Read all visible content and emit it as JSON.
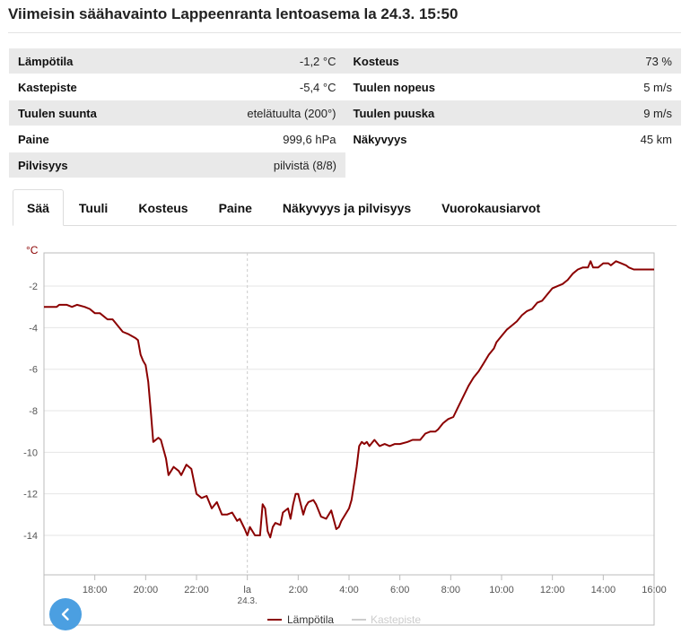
{
  "title": "Viimeisin säähavainto Lappeenranta lentoasema la 24.3. 15:50",
  "observations": [
    {
      "left": {
        "label": "Lämpötila",
        "value": "-1,2 °C"
      },
      "right": {
        "label": "Kosteus",
        "value": "73 %"
      }
    },
    {
      "left": {
        "label": "Kastepiste",
        "value": "-5,4 °C"
      },
      "right": {
        "label": "Tuulen nopeus",
        "value": "5 m/s"
      }
    },
    {
      "left": {
        "label": "Tuulen suunta",
        "value": "etelätuulta (200°)"
      },
      "right": {
        "label": "Tuulen puuska",
        "value": "9 m/s"
      }
    },
    {
      "left": {
        "label": "Paine",
        "value": "999,6 hPa"
      },
      "right": {
        "label": "Näkyvyys",
        "value": "45 km"
      }
    },
    {
      "left": {
        "label": "Pilvisyys",
        "value": "pilvistä (8/8)"
      },
      "right": null
    }
  ],
  "tabs": [
    {
      "label": "Sää",
      "active": true
    },
    {
      "label": "Tuuli",
      "active": false
    },
    {
      "label": "Kosteus",
      "active": false
    },
    {
      "label": "Paine",
      "active": false
    },
    {
      "label": "Näkyvyys ja pilvisyys",
      "active": false
    },
    {
      "label": "Vuorokausiarvot",
      "active": false
    }
  ],
  "colors": {
    "temperature": "#8b0000",
    "dewpoint": "#cccccc",
    "grid": "#e6e6e6",
    "back_button": "#4b9fe1"
  },
  "icons": {
    "back": "chevron-left-icon"
  },
  "chart_data": {
    "type": "line",
    "ylabel": "°C",
    "ylim": [
      -15.9,
      -0.4
    ],
    "yticks": [
      -14,
      -12,
      -10,
      -8,
      -6,
      -4,
      -2
    ],
    "xlim_hours": [
      16.0,
      40.0
    ],
    "xticks": [
      {
        "h": 18,
        "label": "18:00",
        "sub": ""
      },
      {
        "h": 20,
        "label": "20:00",
        "sub": ""
      },
      {
        "h": 22,
        "label": "22:00",
        "sub": ""
      },
      {
        "h": 24,
        "label": "la",
        "sub": "24.3."
      },
      {
        "h": 26,
        "label": "2:00",
        "sub": ""
      },
      {
        "h": 28,
        "label": "4:00",
        "sub": ""
      },
      {
        "h": 30,
        "label": "6:00",
        "sub": ""
      },
      {
        "h": 32,
        "label": "8:00",
        "sub": ""
      },
      {
        "h": 34,
        "label": "10:00",
        "sub": ""
      },
      {
        "h": 36,
        "label": "12:00",
        "sub": ""
      },
      {
        "h": 38,
        "label": "14:00",
        "sub": ""
      },
      {
        "h": 40,
        "label": "16:00",
        "sub": ""
      }
    ],
    "day_boundary_hour": 24,
    "legend": "bottom-center",
    "grid": true,
    "series": [
      {
        "name": "Lämpötila",
        "visible": true,
        "x": [
          16.0,
          16.5,
          16.6,
          16.9,
          17.1,
          17.3,
          17.6,
          17.8,
          18.0,
          18.2,
          18.5,
          18.7,
          18.9,
          19.1,
          19.3,
          19.6,
          19.7,
          19.8,
          19.9,
          20.0,
          20.1,
          20.2,
          20.3,
          20.5,
          20.6,
          20.8,
          20.9,
          21.1,
          21.3,
          21.4,
          21.6,
          21.8,
          22.0,
          22.2,
          22.4,
          22.6,
          22.8,
          23.0,
          23.2,
          23.4,
          23.6,
          23.7,
          23.9,
          24.0,
          24.1,
          24.3,
          24.5,
          24.6,
          24.7,
          24.8,
          24.9,
          25.0,
          25.1,
          25.3,
          25.4,
          25.6,
          25.7,
          25.8,
          25.9,
          26.0,
          26.2,
          26.3,
          26.4,
          26.6,
          26.7,
          26.9,
          27.1,
          27.3,
          27.5,
          27.6,
          27.7,
          27.9,
          28.0,
          28.1,
          28.2,
          28.3,
          28.4,
          28.5,
          28.6,
          28.7,
          28.8,
          29.0,
          29.2,
          29.4,
          29.6,
          29.8,
          30.0,
          30.3,
          30.5,
          30.8,
          31.0,
          31.2,
          31.4,
          31.5,
          31.7,
          31.9,
          32.1,
          32.3,
          32.5,
          32.7,
          32.9,
          33.1,
          33.3,
          33.5,
          33.7,
          33.8,
          34.0,
          34.2,
          34.4,
          34.6,
          34.8,
          35.0,
          35.2,
          35.4,
          35.6,
          35.8,
          36.0,
          36.2,
          36.4,
          36.6,
          36.8,
          37.0,
          37.2,
          37.4,
          37.5,
          37.6,
          37.8,
          38.0,
          38.2,
          38.3,
          38.5,
          38.7,
          38.9,
          39.0,
          39.2,
          39.5,
          39.8,
          40.0
        ],
        "y": [
          -3.0,
          -3.0,
          -2.9,
          -2.9,
          -3.0,
          -2.9,
          -3.0,
          -3.1,
          -3.3,
          -3.3,
          -3.6,
          -3.6,
          -3.9,
          -4.2,
          -4.3,
          -4.5,
          -4.6,
          -5.3,
          -5.6,
          -5.8,
          -6.6,
          -8.0,
          -9.5,
          -9.3,
          -9.4,
          -10.3,
          -11.1,
          -10.7,
          -10.9,
          -11.1,
          -10.6,
          -10.8,
          -12.0,
          -12.2,
          -12.1,
          -12.7,
          -12.4,
          -13.0,
          -13.0,
          -12.9,
          -13.3,
          -13.2,
          -13.7,
          -14.0,
          -13.6,
          -14.0,
          -14.0,
          -12.5,
          -12.7,
          -13.8,
          -14.1,
          -13.6,
          -13.4,
          -13.5,
          -12.9,
          -12.7,
          -13.2,
          -12.5,
          -12.0,
          -12.0,
          -13.0,
          -12.6,
          -12.4,
          -12.3,
          -12.5,
          -13.1,
          -13.2,
          -12.8,
          -13.7,
          -13.6,
          -13.3,
          -12.9,
          -12.7,
          -12.3,
          -11.5,
          -10.7,
          -9.7,
          -9.5,
          -9.6,
          -9.5,
          -9.7,
          -9.4,
          -9.7,
          -9.6,
          -9.7,
          -9.6,
          -9.6,
          -9.5,
          -9.4,
          -9.4,
          -9.1,
          -9.0,
          -9.0,
          -8.9,
          -8.6,
          -8.4,
          -8.3,
          -7.8,
          -7.3,
          -6.8,
          -6.4,
          -6.1,
          -5.7,
          -5.3,
          -5.0,
          -4.7,
          -4.4,
          -4.1,
          -3.9,
          -3.7,
          -3.4,
          -3.2,
          -3.1,
          -2.8,
          -2.7,
          -2.4,
          -2.1,
          -2.0,
          -1.9,
          -1.7,
          -1.4,
          -1.2,
          -1.1,
          -1.1,
          -0.8,
          -1.1,
          -1.1,
          -0.9,
          -0.9,
          -1.0,
          -0.8,
          -0.9,
          -1.0,
          -1.1,
          -1.2,
          -1.2,
          -1.2,
          -1.2
        ]
      },
      {
        "name": "Kastepiste",
        "visible": false,
        "x": [],
        "y": []
      }
    ]
  }
}
